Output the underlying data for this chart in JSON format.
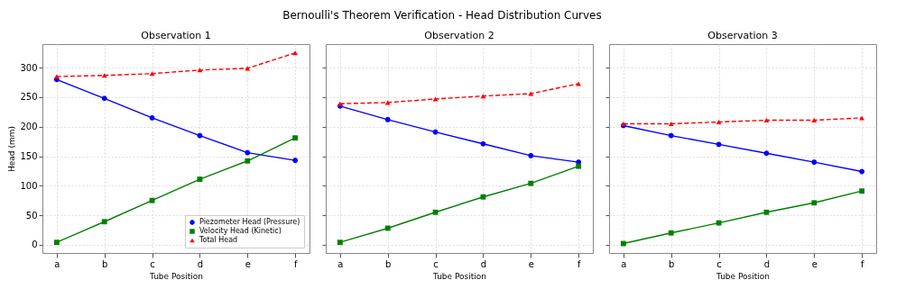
{
  "chart_data": [
    {
      "type": "line",
      "title": "Observation 1",
      "annotations": [
        "Bernoulli's Theorem Verification - Head Distribution Curves"
      ],
      "xlabel": "Tube Position",
      "ylabel": "Head (mm)",
      "categories": [
        "a",
        "b",
        "c",
        "d",
        "e",
        "f"
      ],
      "ylim": [
        -14,
        340
      ],
      "yticks": [
        0,
        50,
        100,
        150,
        200,
        250,
        300
      ],
      "grid": true,
      "legend": "bottom right",
      "series": [
        {
          "name": "Piezometer Head (Pressure)",
          "color": "#0000ff",
          "marker": "circle",
          "line_style": "solid",
          "values": [
            280,
            248,
            215,
            185,
            156,
            143
          ]
        },
        {
          "name": "Velocity Head (Kinetic)",
          "color": "#008000",
          "marker": "square",
          "line_style": "solid",
          "values": [
            4,
            39,
            75,
            111,
            142,
            181
          ]
        },
        {
          "name": "Total Head",
          "color": "#ff0000",
          "marker": "triangle",
          "line_style": "dashed",
          "values": [
            285,
            287,
            290,
            296,
            299,
            325
          ]
        }
      ]
    },
    {
      "type": "line",
      "title": "Observation 2",
      "xlabel": "Tube Position",
      "categories": [
        "a",
        "b",
        "c",
        "d",
        "e",
        "f"
      ],
      "ylim": [
        -14,
        340
      ],
      "yticks": [
        0,
        50,
        100,
        150,
        200,
        250,
        300
      ],
      "grid": true,
      "tick_labels": "x",
      "series": [
        {
          "color": "#0000ff",
          "marker": "circle",
          "line_style": "solid",
          "values": [
            235,
            212,
            191,
            171,
            151,
            140
          ]
        },
        {
          "color": "#008000",
          "marker": "square",
          "line_style": "solid",
          "values": [
            4,
            28,
            55,
            81,
            104,
            133
          ]
        },
        {
          "color": "#ff0000",
          "marker": "triangle",
          "line_style": "dashed",
          "values": [
            239,
            241,
            247,
            252,
            256,
            273
          ]
        }
      ]
    },
    {
      "type": "line",
      "title": "Observation 3",
      "xlabel": "Tube Position",
      "categories": [
        "a",
        "b",
        "c",
        "d",
        "e",
        "f"
      ],
      "ylim": [
        -14,
        340
      ],
      "yticks": [
        0,
        50,
        100,
        150,
        200,
        250,
        300
      ],
      "grid": true,
      "tick_labels": "x",
      "series": [
        {
          "color": "#0000ff",
          "marker": "circle",
          "line_style": "solid",
          "values": [
            202,
            185,
            170,
            155,
            140,
            124
          ]
        },
        {
          "color": "#008000",
          "marker": "square",
          "line_style": "solid",
          "values": [
            2,
            20,
            37,
            55,
            71,
            91
          ]
        },
        {
          "color": "#ff0000",
          "marker": "triangle",
          "line_style": "dashed",
          "values": [
            205,
            205,
            208,
            211,
            211,
            215
          ]
        }
      ]
    }
  ]
}
